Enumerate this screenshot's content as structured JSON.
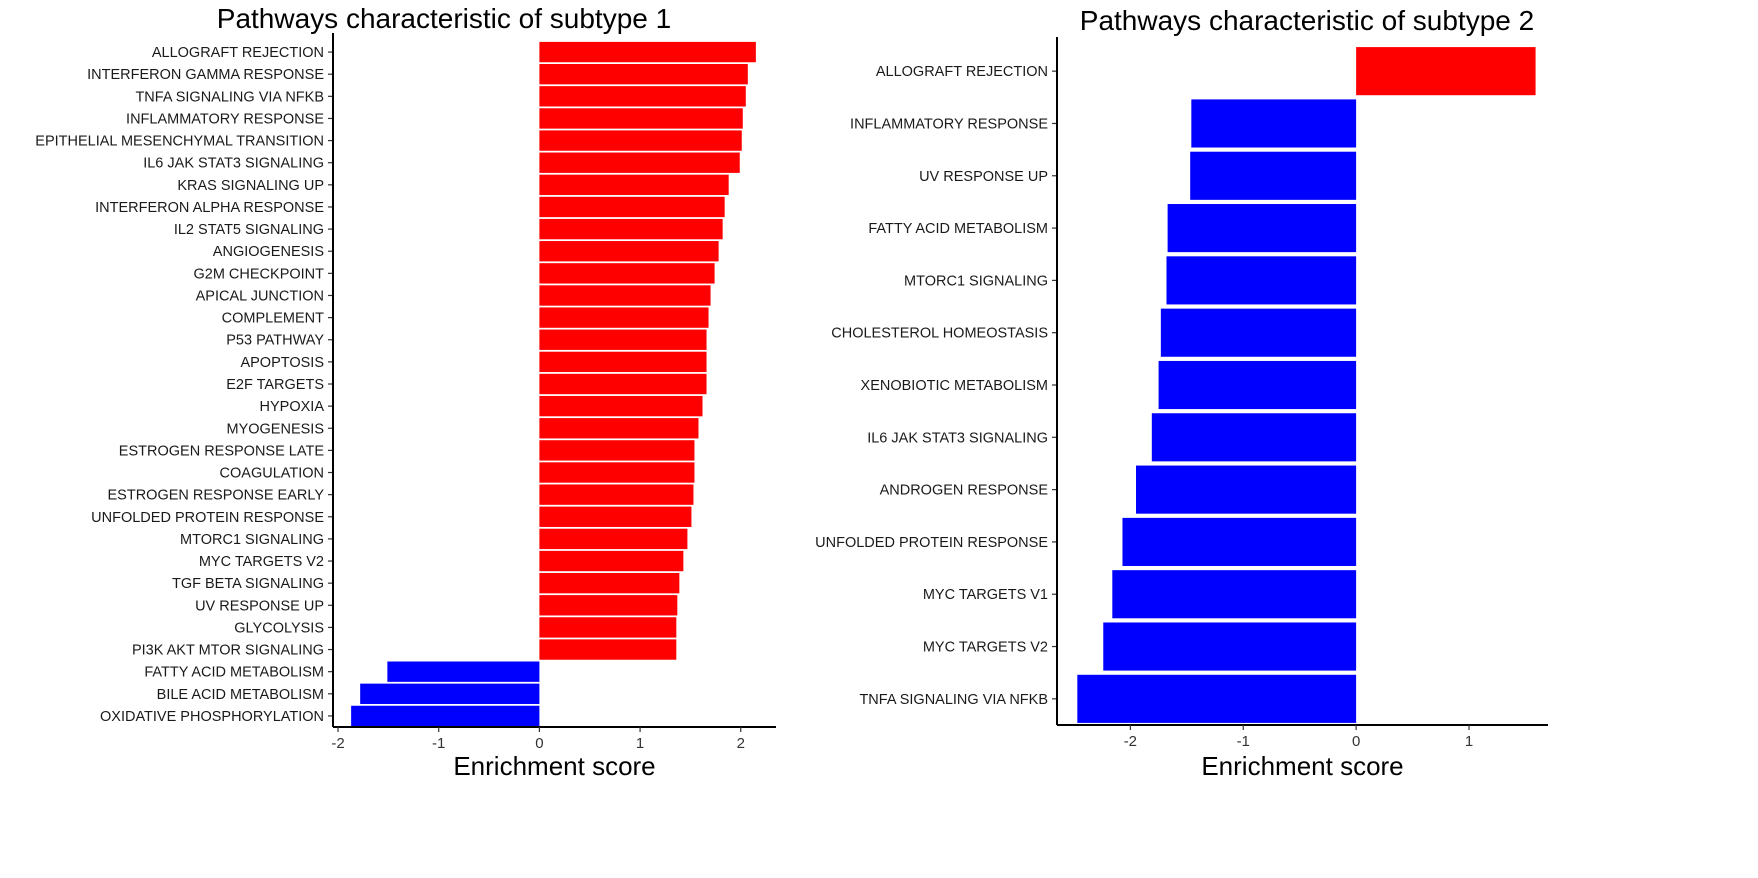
{
  "chart_data": [
    {
      "type": "bar",
      "orientation": "horizontal",
      "title": "Pathways characteristic of subtype 1",
      "xlabel": "Enrichment score",
      "ylabel": "",
      "xlim": [
        -2.05,
        2.35
      ],
      "xticks": [
        -2,
        -1,
        0,
        1,
        2
      ],
      "grid": false,
      "positive_color": "#ff0000",
      "negative_color": "#0000ff",
      "categories": [
        "ALLOGRAFT REJECTION",
        "INTERFERON GAMMA RESPONSE",
        "TNFA SIGNALING VIA NFKB",
        "INFLAMMATORY RESPONSE",
        "EPITHELIAL MESENCHYMAL TRANSITION",
        "IL6 JAK STAT3 SIGNALING",
        "KRAS SIGNALING UP",
        "INTERFERON ALPHA RESPONSE",
        "IL2 STAT5 SIGNALING",
        "ANGIOGENESIS",
        "G2M CHECKPOINT",
        "APICAL JUNCTION",
        "COMPLEMENT",
        "P53 PATHWAY",
        "APOPTOSIS",
        "E2F TARGETS",
        "HYPOXIA",
        "MYOGENESIS",
        "ESTROGEN RESPONSE LATE",
        "COAGULATION",
        "ESTROGEN RESPONSE EARLY",
        "UNFOLDED PROTEIN RESPONSE",
        "MTORC1 SIGNALING",
        "MYC TARGETS V2",
        "TGF BETA SIGNALING",
        "UV RESPONSE UP",
        "GLYCOLYSIS",
        "PI3K AKT MTOR SIGNALING",
        "FATTY ACID METABOLISM",
        "BILE ACID METABOLISM",
        "OXIDATIVE PHOSPHORYLATION"
      ],
      "values": [
        2.15,
        2.07,
        2.05,
        2.02,
        2.01,
        1.99,
        1.88,
        1.84,
        1.82,
        1.78,
        1.74,
        1.7,
        1.68,
        1.66,
        1.66,
        1.66,
        1.62,
        1.58,
        1.54,
        1.54,
        1.53,
        1.51,
        1.47,
        1.43,
        1.39,
        1.37,
        1.36,
        1.36,
        -1.51,
        -1.78,
        -1.87
      ]
    },
    {
      "type": "bar",
      "orientation": "horizontal",
      "title": "Pathways characteristic of subtype 2",
      "xlabel": "Enrichment score",
      "ylabel": "",
      "xlim": [
        -2.65,
        1.7
      ],
      "xticks": [
        -2,
        -1,
        0,
        1
      ],
      "grid": false,
      "positive_color": "#ff0000",
      "negative_color": "#0000ff",
      "categories": [
        "ALLOGRAFT REJECTION",
        "INFLAMMATORY RESPONSE",
        "UV RESPONSE UP",
        "FATTY ACID METABOLISM",
        "MTORC1 SIGNALING",
        "CHOLESTEROL HOMEOSTASIS",
        "XENOBIOTIC METABOLISM",
        "IL6 JAK STAT3 SIGNALING",
        "ANDROGEN RESPONSE",
        "UNFOLDED PROTEIN RESPONSE",
        "MYC TARGETS V1",
        "MYC TARGETS V2",
        "TNFA SIGNALING VIA NFKB"
      ],
      "values": [
        1.59,
        -1.46,
        -1.47,
        -1.67,
        -1.68,
        -1.73,
        -1.75,
        -1.81,
        -1.95,
        -2.07,
        -2.16,
        -2.24,
        -2.47
      ]
    }
  ]
}
